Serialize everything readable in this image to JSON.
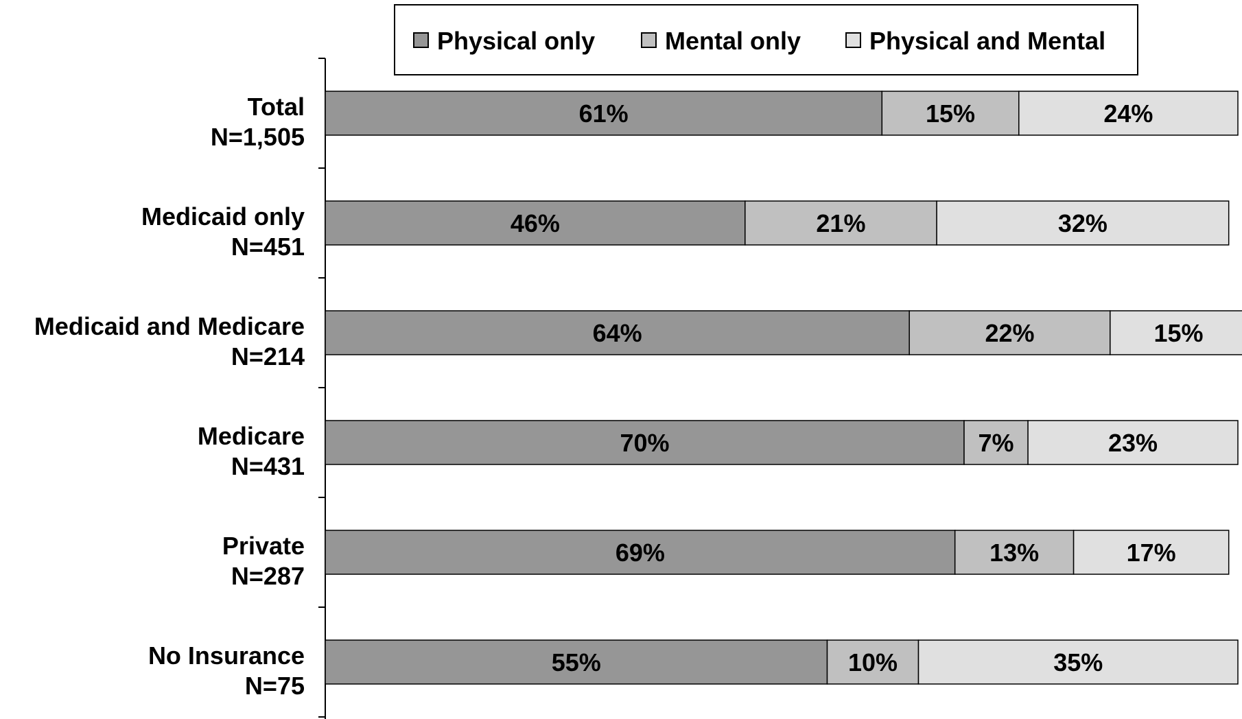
{
  "chart_data": {
    "type": "bar",
    "orientation": "horizontal",
    "stacked": true,
    "title": "",
    "xlabel": "",
    "ylabel": "",
    "xlim": [
      0,
      100
    ],
    "grid": false,
    "legend_position": "top",
    "categories": [
      {
        "name": "Total",
        "n": "N=1,505"
      },
      {
        "name": "Medicaid only",
        "n": "N=451"
      },
      {
        "name": "Medicaid and Medicare",
        "n": "N=214"
      },
      {
        "name": "Medicare",
        "n": "N=431"
      },
      {
        "name": "Private",
        "n": "N=287"
      },
      {
        "name": "No Insurance",
        "n": "N=75"
      }
    ],
    "series": [
      {
        "name": "Physical only",
        "color": "#969696",
        "values": [
          61,
          46,
          64,
          70,
          69,
          55
        ]
      },
      {
        "name": "Mental only",
        "color": "#c0c0c0",
        "values": [
          15,
          21,
          22,
          7,
          13,
          10
        ]
      },
      {
        "name": "Physical and Mental",
        "color": "#e0e0e0",
        "values": [
          24,
          32,
          15,
          23,
          17,
          35
        ]
      }
    ]
  }
}
